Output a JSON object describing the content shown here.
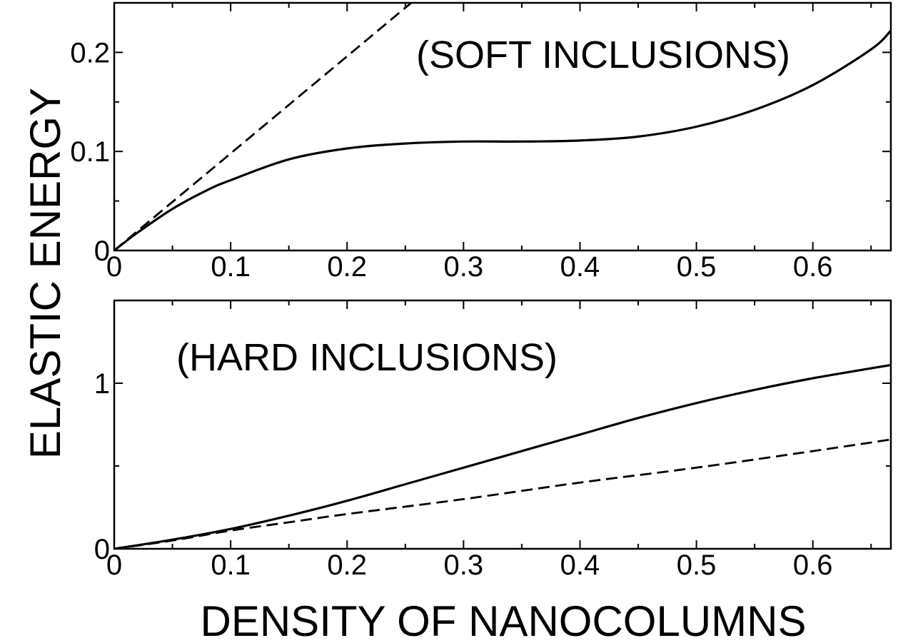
{
  "ylabel": "ELASTIC ENERGY",
  "xlabel": "DENSITY OF NANOCOLUMNS",
  "chart_data": [
    {
      "type": "line",
      "annotation": "(SOFT INCLUSIONS)",
      "xlim": [
        0,
        0.667
      ],
      "ylim": [
        0,
        0.25
      ],
      "x_ticks": [
        0,
        0.1,
        0.2,
        0.3,
        0.4,
        0.5,
        0.6
      ],
      "x_tick_labels": [
        "0",
        "0.1",
        "0.2",
        "0.3",
        "0.4",
        "0.5",
        "0.6"
      ],
      "y_ticks": [
        0,
        0.1,
        0.2
      ],
      "y_tick_labels": [
        "0",
        "0.1",
        "0.2"
      ],
      "grid": false,
      "series": [
        {
          "style": "solid",
          "x": [
            0,
            0.02,
            0.05,
            0.08,
            0.1,
            0.15,
            0.2,
            0.25,
            0.3,
            0.35,
            0.4,
            0.45,
            0.5,
            0.55,
            0.6,
            0.65,
            0.667
          ],
          "y": [
            0,
            0.018,
            0.042,
            0.061,
            0.071,
            0.092,
            0.103,
            0.108,
            0.11,
            0.11,
            0.111,
            0.115,
            0.125,
            0.142,
            0.167,
            0.203,
            0.222
          ]
        },
        {
          "style": "dashed",
          "x": [
            0,
            0.255
          ],
          "y": [
            0,
            0.25
          ]
        }
      ]
    },
    {
      "type": "line",
      "annotation": "(HARD INCLUSIONS)",
      "xlim": [
        0,
        0.667
      ],
      "ylim": [
        0,
        1.5
      ],
      "x_ticks": [
        0,
        0.1,
        0.2,
        0.3,
        0.4,
        0.5,
        0.6
      ],
      "x_tick_labels": [
        "0",
        "0.1",
        "0.2",
        "0.3",
        "0.4",
        "0.5",
        "0.6"
      ],
      "y_ticks": [
        0,
        1
      ],
      "y_tick_labels": [
        "0",
        "1"
      ],
      "y_minor_ticks": [
        0.5
      ],
      "grid": false,
      "series": [
        {
          "style": "solid",
          "x": [
            0,
            0.05,
            0.1,
            0.15,
            0.2,
            0.25,
            0.3,
            0.35,
            0.4,
            0.45,
            0.5,
            0.55,
            0.6,
            0.65,
            0.667
          ],
          "y": [
            0,
            0.055,
            0.12,
            0.2,
            0.29,
            0.39,
            0.49,
            0.59,
            0.69,
            0.79,
            0.88,
            0.96,
            1.03,
            1.09,
            1.11
          ]
        },
        {
          "style": "dashed",
          "x": [
            0,
            0.05,
            0.1,
            0.15,
            0.2,
            0.3,
            0.4,
            0.5,
            0.6,
            0.667
          ],
          "y": [
            0,
            0.05,
            0.11,
            0.16,
            0.21,
            0.3,
            0.4,
            0.49,
            0.59,
            0.66
          ]
        }
      ]
    }
  ]
}
